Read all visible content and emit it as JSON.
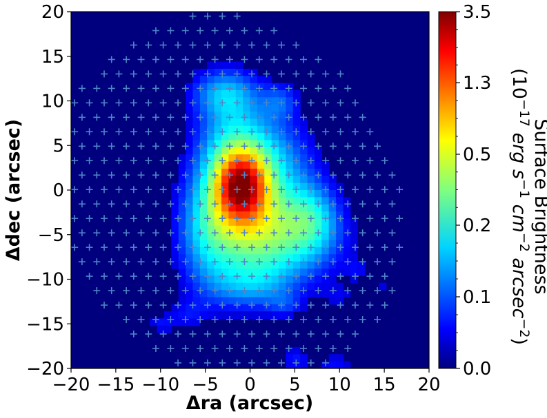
{
  "chart_data": {
    "type": "heatmap",
    "xlabel": "Δra (arcsec)",
    "ylabel": "Δdec (arcsec)",
    "xlim": [
      -20,
      20
    ],
    "ylim": [
      -20,
      20
    ],
    "x_ticks": [
      -20,
      -15,
      -10,
      -5,
      0,
      5,
      10,
      15,
      20
    ],
    "y_ticks": [
      -20,
      -15,
      -10,
      -5,
      0,
      5,
      10,
      15,
      20
    ],
    "x_tick_labels": [
      "−20",
      "−15",
      "−10",
      "−5",
      "0",
      "5",
      "10",
      "15",
      "20"
    ],
    "y_tick_labels": [
      "−20",
      "−15",
      "−10",
      "−5",
      "0",
      "5",
      "10",
      "15",
      "20"
    ],
    "colormap": "jet",
    "background_color": "#00007f",
    "colorbar": {
      "ticks": [
        0.0,
        0.1,
        0.2,
        0.5,
        1.3,
        3.5
      ],
      "tick_labels": [
        "0.0",
        "0.1",
        "0.2",
        "0.5",
        "1.3",
        "3.5"
      ],
      "label_line1": "Surface Brightness",
      "label_line2_parts": [
        "(10",
        "−17",
        " erg s",
        "−1",
        " cm",
        "−2",
        " arcsec",
        "−2",
        ")"
      ]
    },
    "emission_peak": {
      "x": -1,
      "y": 0.5,
      "value": 3.5
    },
    "fiber_markers": {
      "marker": "+",
      "color": "#4f86c6",
      "description": "IFU fiber positions in a hexagonal grid covering the field"
    }
  }
}
